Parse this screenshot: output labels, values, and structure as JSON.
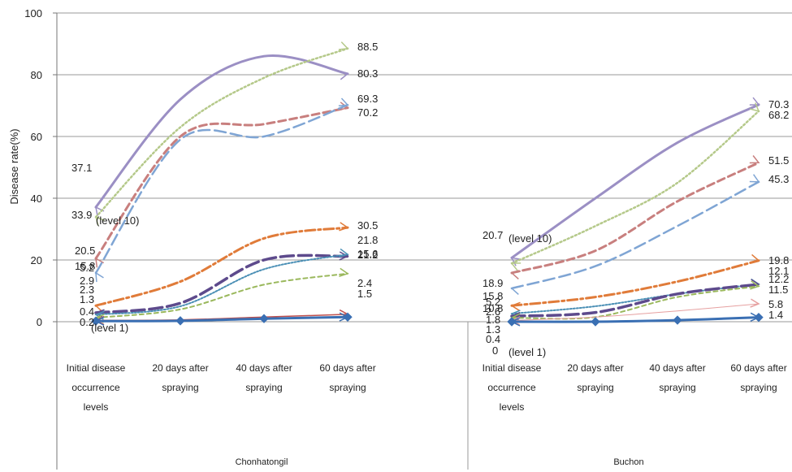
{
  "chart_data": {
    "type": "line",
    "ylabel": "Disease rate(%)",
    "ylim": [
      0,
      100
    ],
    "yticks": [
      "0",
      "20",
      "40",
      "60",
      "80",
      "100"
    ],
    "grid": true,
    "level_annotations": [
      "(level 10)",
      "(level  1)"
    ],
    "categories": [
      "Initial disease occurrence levels",
      "20 days after spraying",
      "40 days after spraying",
      "60 days after spraying"
    ],
    "category_lines": [
      [
        "Initial disease",
        "occurrence",
        "levels"
      ],
      [
        "20 days after",
        "spraying"
      ],
      [
        "40 days after",
        "spraying"
      ],
      [
        "60 days after",
        "spraying"
      ]
    ],
    "groups": [
      {
        "name": "Chonhatongil",
        "series": [
          {
            "values": [
              37.1,
              72,
              86,
              80.3
            ],
            "color": "#9b8fc4",
            "dash": "",
            "width": 3,
            "start_label": "37.1",
            "end_label": "80.3"
          },
          {
            "values": [
              33.9,
              63,
              79,
              88.5
            ],
            "color": "#b5c98a",
            "dash": "2,3",
            "width": 2.5,
            "start_label": "33.9",
            "end_label": "88.5"
          },
          {
            "values": [
              20.5,
              60,
              64,
              69.3
            ],
            "color": "#c87f7e",
            "dash": "9,5",
            "width": 3,
            "start_label": "20.5",
            "end_label": "69.3"
          },
          {
            "values": [
              15.8,
              59,
              60,
              70.2
            ],
            "color": "#7fa5d4",
            "dash": "14,6",
            "width": 2.5,
            "start_label": "15.8",
            "end_label": "70.2"
          },
          {
            "values": [
              5.2,
              13,
              27,
              30.5
            ],
            "color": "#e07b39",
            "dash": "12,4,3,4",
            "width": 3,
            "start_label": "5.2",
            "end_label": "30.5"
          },
          {
            "values": [
              2.9,
              6,
              20,
              21.2
            ],
            "color": "#5d4a8c",
            "dash": "16,6",
            "width": 3.5,
            "start_label": "2.9",
            "end_label": "21.2"
          },
          {
            "values": [
              2.3,
              5,
              17,
              21.8
            ],
            "color": "#4a8fb5",
            "dash": "2,2",
            "width": 2,
            "start_label": "2.3",
            "end_label": "21.8"
          },
          {
            "values": [
              1.3,
              4,
              12,
              15.6
            ],
            "color": "#9ab85c",
            "dash": "5,4",
            "width": 2,
            "start_label": "1.3",
            "end_label": "15.6"
          },
          {
            "values": [
              0.4,
              0.6,
              1.5,
              2.4
            ],
            "color": "#c0504d",
            "dash": "",
            "width": 1.5,
            "start_label": "0.4",
            "end_label": "2.4"
          },
          {
            "values": [
              0.2,
              0.3,
              1.0,
              1.5
            ],
            "color": "#3a6fb3",
            "dash": "",
            "width": 3,
            "start_label": "0.2",
            "end_label": "1.5",
            "markers": true
          }
        ]
      },
      {
        "name": "Buchon",
        "series": [
          {
            "values": [
              20.7,
              40,
              58,
              70.3
            ],
            "color": "#9b8fc4",
            "dash": "",
            "width": 3,
            "start_label": "20.7",
            "end_label": "70.3"
          },
          {
            "values": [
              18.9,
              31,
              45,
              68.2
            ],
            "color": "#b5c98a",
            "dash": "2,3",
            "width": 2.5,
            "start_label": "18.9",
            "end_label": "68.2"
          },
          {
            "values": [
              15.8,
              23,
              39,
              51.5
            ],
            "color": "#c87f7e",
            "dash": "9,5",
            "width": 3,
            "start_label": "15.8",
            "end_label": "51.5"
          },
          {
            "values": [
              10.8,
              18,
              31,
              45.3
            ],
            "color": "#7fa5d4",
            "dash": "14,6",
            "width": 2.5,
            "start_label": "10.8",
            "end_label": "45.3"
          },
          {
            "values": [
              5.2,
              8,
              13,
              19.8
            ],
            "color": "#e07b39",
            "dash": "12,4,3,4",
            "width": 3,
            "start_label": "5.2",
            "end_label": "19.8"
          },
          {
            "values": [
              2.6,
              5,
              9,
              12.2
            ],
            "color": "#4a8fb5",
            "dash": "2,2",
            "width": 2,
            "start_label": "2.6",
            "end_label": "12.2"
          },
          {
            "values": [
              1.8,
              3,
              9,
              12.1
            ],
            "color": "#5d4a8c",
            "dash": "16,6",
            "width": 3.5,
            "start_label": "1.8",
            "end_label": "12.1"
          },
          {
            "values": [
              1.3,
              1.5,
              8,
              11.5
            ],
            "color": "#9ab85c",
            "dash": "5,4",
            "width": 2,
            "start_label": "1.3",
            "end_label": "11.5"
          },
          {
            "values": [
              0.4,
              1.5,
              3.5,
              5.8
            ],
            "color": "#e6a0a0",
            "dash": "",
            "width": 1,
            "start_label": "0.4",
            "end_label": "5.8"
          },
          {
            "values": [
              0,
              0,
              0.5,
              1.4
            ],
            "color": "#3a6fb3",
            "dash": "",
            "width": 3,
            "start_label": "0",
            "end_label": "1.4",
            "markers": true
          }
        ]
      }
    ]
  }
}
